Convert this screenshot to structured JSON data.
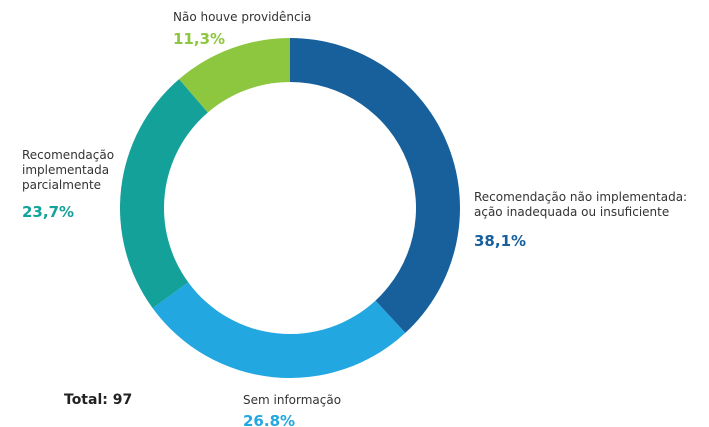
{
  "chart_data": {
    "type": "donut",
    "categories": [
      "Recomendação não implementada: ação inadequada ou insuficiente",
      "Sem informação",
      "Recomendação implementada parcialmente",
      "Não houve providência"
    ],
    "values": [
      38.1,
      26.8,
      23.7,
      11.3
    ],
    "value_labels": [
      "38,1%",
      "26.8%",
      "23,7%",
      "11,3%"
    ],
    "colors": [
      "#17609c",
      "#22a7e0",
      "#14a19a",
      "#8dc63f"
    ],
    "annotation": "Total: 97"
  }
}
